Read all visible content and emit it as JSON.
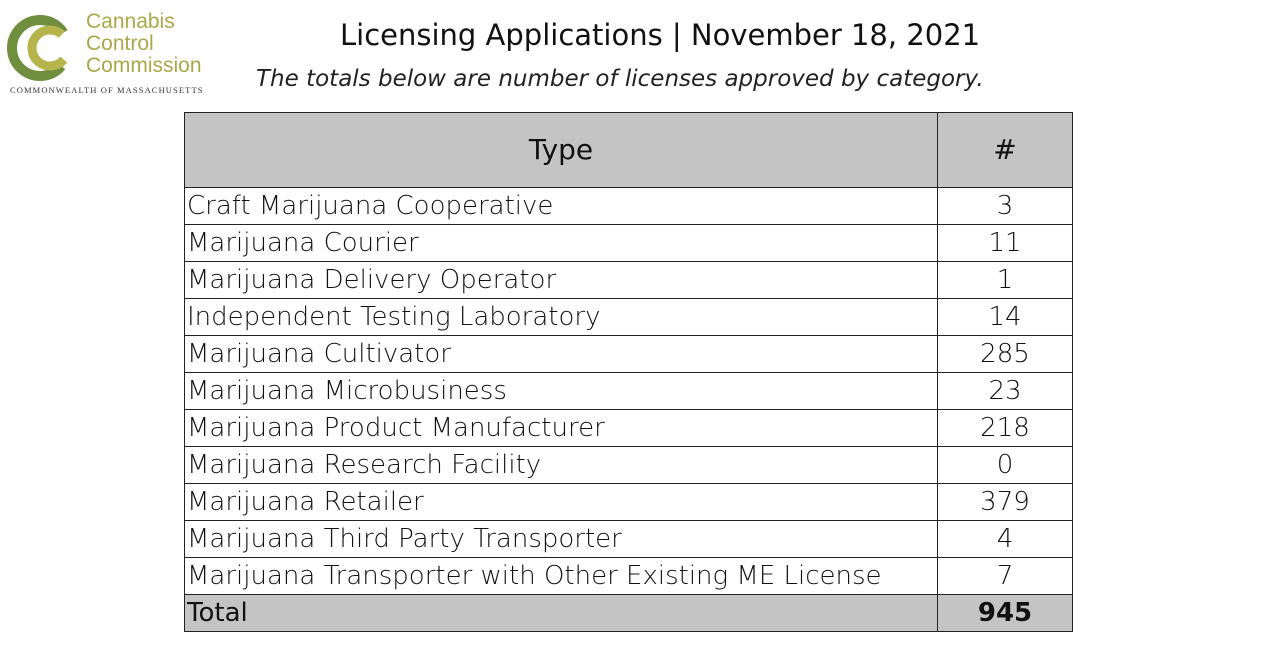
{
  "logo": {
    "line1": "Cannabis",
    "line2": "Control",
    "line3": "Commission",
    "subline": "COMMONWEALTH OF MASSACHUSETTS",
    "colors": {
      "olive": "#a8a84a",
      "green": "#6f8f3f"
    }
  },
  "header": {
    "title": "Licensing Applications | November 18, 2021",
    "subtitle": "The totals below are number of licenses approved by category."
  },
  "table": {
    "col_type": "Type",
    "col_count": "#",
    "rows": [
      {
        "type": "Craft Marijuana Cooperative",
        "count": "3"
      },
      {
        "type": "Marijuana Courier",
        "count": "11"
      },
      {
        "type": "Marijuana Delivery Operator",
        "count": "1"
      },
      {
        "type": "Independent Testing Laboratory",
        "count": "14"
      },
      {
        "type": "Marijuana Cultivator",
        "count": "285"
      },
      {
        "type": "Marijuana Microbusiness",
        "count": "23"
      },
      {
        "type": "Marijuana Product Manufacturer",
        "count": "218"
      },
      {
        "type": "Marijuana Research Facility",
        "count": "0"
      },
      {
        "type": "Marijuana Retailer",
        "count": "379"
      },
      {
        "type": "Marijuana Third Party Transporter",
        "count": "4"
      },
      {
        "type": "Marijuana Transporter with Other Existing ME License",
        "count": "7"
      }
    ],
    "total_label": "Total",
    "total_count": "945"
  }
}
